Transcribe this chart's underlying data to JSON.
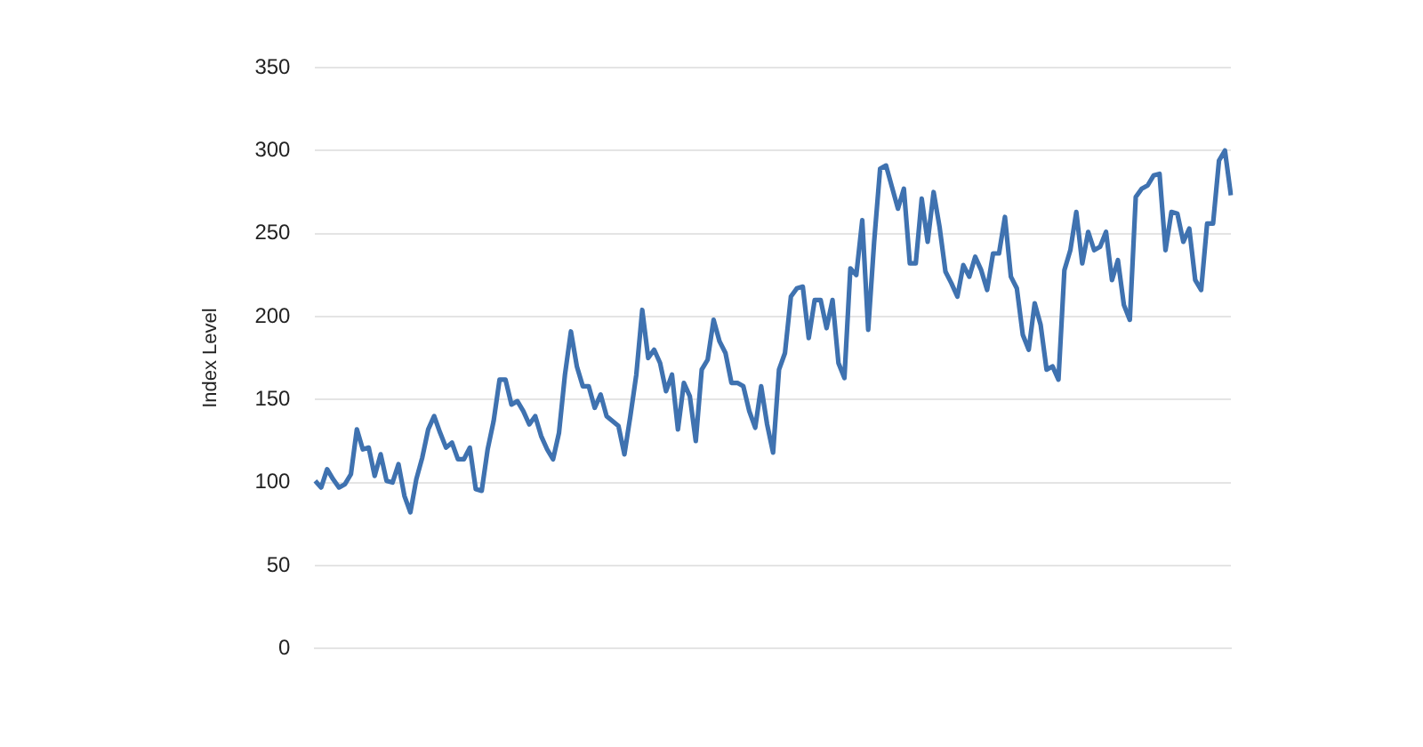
{
  "chart_data": {
    "type": "line",
    "ylabel": "Index Level",
    "categories": [
      null,
      null,
      null,
      null,
      null,
      null,
      null,
      null,
      null,
      null,
      null,
      null,
      null,
      null,
      null,
      null,
      null,
      null,
      null,
      null,
      null,
      null,
      null,
      null,
      null,
      null,
      null,
      null,
      null,
      null,
      null,
      null,
      null,
      null,
      null,
      null,
      null,
      null,
      null,
      null,
      null,
      null,
      null,
      null,
      null,
      null,
      null,
      null,
      null,
      null,
      null,
      null,
      null,
      null,
      null,
      null,
      null,
      null,
      null,
      null,
      null,
      null,
      null,
      null,
      null,
      null,
      null,
      null,
      null,
      null,
      null,
      null,
      null,
      null,
      null,
      null,
      null,
      null,
      null,
      null,
      null,
      null,
      null,
      null,
      null,
      null,
      null,
      null,
      null,
      null,
      null,
      null,
      null,
      null,
      null,
      null,
      null,
      null,
      null,
      null,
      null,
      null,
      null,
      null,
      null,
      null,
      null,
      null,
      null,
      null,
      null,
      null,
      null,
      null,
      null,
      null,
      null,
      null,
      null,
      null,
      null,
      null,
      null,
      null,
      null,
      null,
      null,
      null,
      null,
      null,
      null,
      null,
      null,
      null,
      null,
      null,
      null,
      null,
      null,
      null,
      null,
      null,
      null,
      null,
      null,
      null,
      null,
      null,
      null,
      null,
      null,
      null,
      null,
      null,
      null
    ],
    "series": [
      {
        "color": "#3f72b0",
        "values": [
          101,
          97,
          108,
          102,
          97,
          99,
          105,
          132,
          120,
          121,
          104,
          117,
          101,
          100,
          111,
          92,
          82,
          102,
          115,
          132,
          140,
          130,
          121,
          124,
          114,
          114,
          121,
          96,
          95,
          120,
          137,
          162,
          162,
          147,
          149,
          143,
          135,
          140,
          128,
          120,
          114,
          130,
          165,
          191,
          170,
          158,
          158,
          145,
          153,
          140,
          137,
          134,
          117,
          140,
          165,
          204,
          175,
          180,
          172,
          155,
          165,
          132,
          160,
          152,
          125,
          168,
          174,
          198,
          185,
          178,
          160,
          160,
          158,
          143,
          133,
          158,
          135,
          118,
          168,
          178,
          212,
          217,
          218,
          187,
          210,
          210,
          193,
          210,
          172,
          163,
          229,
          225,
          258,
          192,
          245,
          289,
          291,
          278,
          265,
          277,
          232,
          232,
          271,
          245,
          275,
          254,
          227,
          220,
          212,
          231,
          224,
          236,
          228,
          216,
          238,
          238,
          260,
          224,
          217,
          189,
          180,
          208,
          195,
          168,
          170,
          162,
          228,
          240,
          263,
          232,
          251,
          240,
          242,
          251,
          222,
          234,
          207,
          198,
          272,
          277,
          279,
          285,
          286,
          240,
          263,
          262,
          245,
          253,
          222,
          216,
          256,
          256,
          294,
          300,
          273
        ]
      }
    ],
    "ylim": [
      0,
      350
    ],
    "yticks": [
      0,
      50,
      100,
      150,
      200,
      250,
      300,
      350
    ],
    "grid": "y",
    "legend": false,
    "marker": "none",
    "line_style": "solid"
  }
}
